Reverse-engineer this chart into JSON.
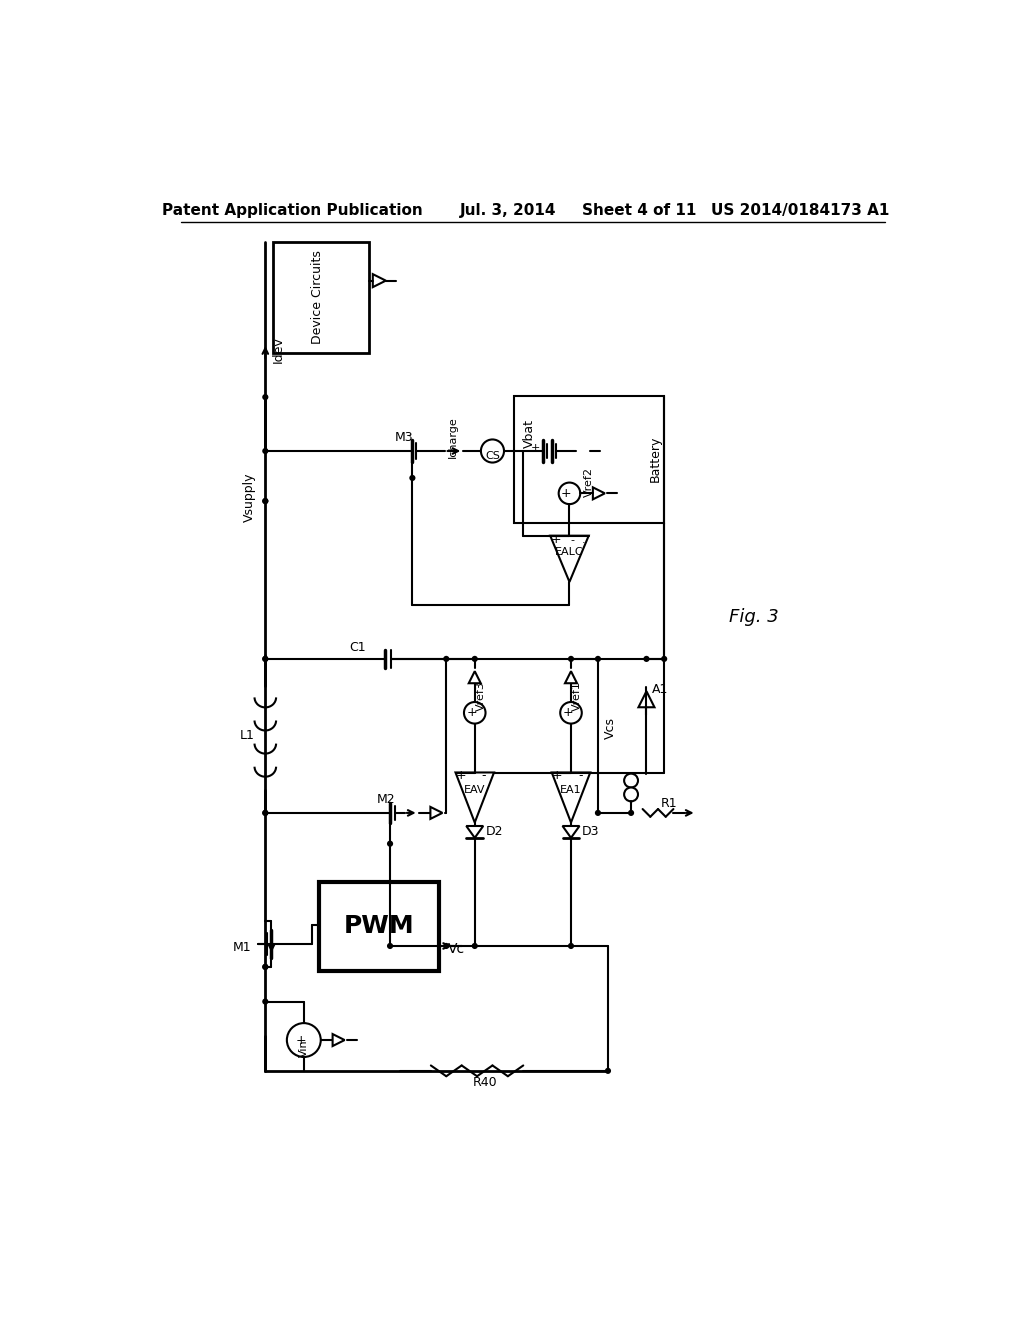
{
  "title_left": "Patent Application Publication",
  "title_mid": "Jul. 3, 2014",
  "title_sheet": "Sheet 4 of 11",
  "title_patent": "US 2014/0184173 A1",
  "fig_label": "Fig. 3",
  "bg_color": "#ffffff",
  "lc": "#000000",
  "tc": "#000000"
}
